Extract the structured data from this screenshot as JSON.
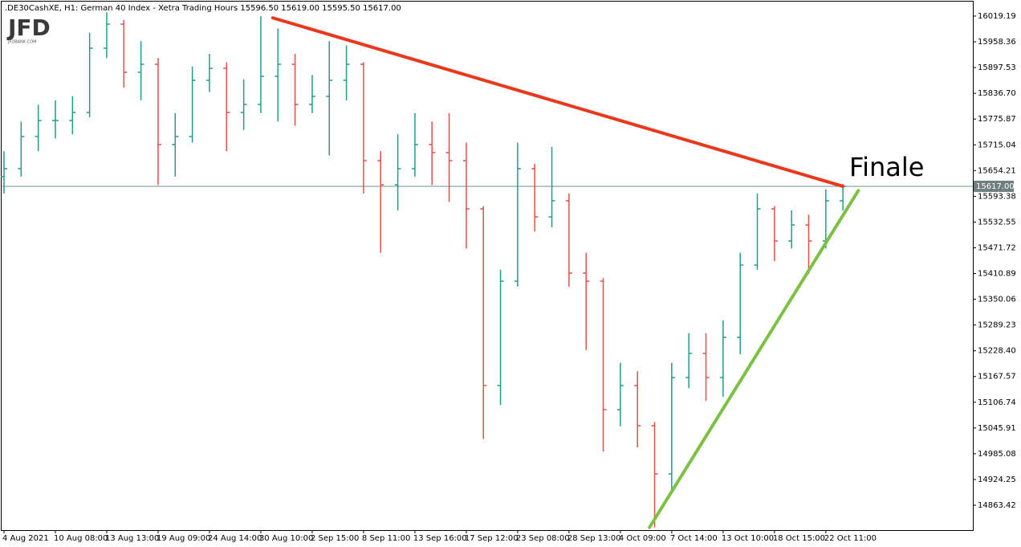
{
  "chart_data": {
    "type": "ohlc",
    "title": ".DE30CashXE, H1:  German 40 Index - Xetra Trading Hours  15596.50 15619.00 15595.50 15617.00",
    "logo": "JFD",
    "logo_subtitle": "JFDBANK.COM",
    "annotation": "Finale",
    "up_color": "#1f9e8a",
    "down_color": "#e0504a",
    "categories": [
      "4 Aug 2021",
      null,
      null,
      "10 Aug 08:00",
      null,
      null,
      "13 Aug 13:00",
      null,
      null,
      "19 Aug 09:00",
      null,
      null,
      "24 Aug 14:00",
      null,
      null,
      "30 Aug 10:00",
      null,
      null,
      "2 Sep 15:00",
      null,
      null,
      "8 Sep 11:00",
      null,
      null,
      "13 Sep 16:00",
      null,
      null,
      "17 Sep 12:00",
      null,
      null,
      "23 Sep 08:00",
      null,
      null,
      "28 Sep 13:00",
      null,
      null,
      "4 Oct 09:00",
      null,
      null,
      "7 Oct 14:00",
      null,
      null,
      "13 Oct 10:00",
      null,
      null,
      "18 Oct 15:00",
      null,
      null,
      "22 Oct 11:00",
      null
    ],
    "open": [
      15640,
      15658.6,
      15734.5,
      15772.5,
      15772.5,
      15791.5,
      15943.3,
      16000.2,
      15886.4,
      15905.3,
      15715.5,
      15734.5,
      15867.4,
      15895.8,
      15791.5,
      15810.4,
      15876.9,
      15905.3,
      15810.4,
      15829.4,
      15867.4,
      15905.3,
      15677.6,
      15620.6,
      15658.6,
      15715.5,
      15696.6,
      15677.6,
      15563.7,
      15146.2,
      15392.9,
      15658.6,
      15544.7,
      15582.7,
      15411.9,
      15392.9,
      15089.3,
      15146.2,
      15051.3,
      14937.4,
      15165.2,
      15222.1,
      15165.2,
      15260.1,
      15430.9,
      15563.7,
      15487.8,
      15525.7,
      15487.8,
      15582.7
    ],
    "high": [
      15700,
      15770,
      15810,
      15820,
      15830,
      15980,
      16028,
      16010,
      15960,
      15920,
      15790,
      15900,
      15930,
      15910,
      15870,
      16019,
      15990,
      15930,
      15880,
      15960,
      15950,
      15910,
      15700,
      15740,
      15790,
      15770,
      15790,
      15720,
      15570,
      15420,
      15720,
      15670,
      15710,
      15600,
      15460,
      15400,
      15200,
      15180,
      15060,
      15200,
      15270,
      15270,
      15300,
      15460,
      15600,
      15570,
      15560,
      15550,
      15610,
      15622
    ],
    "low": [
      15600,
      15640,
      15700,
      15730,
      15740,
      15780,
      15920,
      15850,
      15820,
      15620,
      15640,
      15720,
      15840,
      15700,
      15750,
      15790,
      15770,
      15760,
      15790,
      15690,
      15820,
      15600,
      15460,
      15560,
      15640,
      15620,
      15580,
      15470,
      15020,
      15100,
      15380,
      15510,
      15520,
      15380,
      15230,
      14990,
      15050,
      15000,
      14811,
      14900,
      15140,
      15110,
      15120,
      15220,
      15420,
      15440,
      15470,
      15410,
      15470,
      15560
    ],
    "close": [
      15658.6,
      15734.5,
      15772.5,
      15772.5,
      15791.5,
      15943.3,
      16000.2,
      15886.4,
      15905.3,
      15715.5,
      15734.5,
      15867.4,
      15895.8,
      15791.5,
      15810.4,
      15876.9,
      15905.3,
      15810.4,
      15829.4,
      15867.4,
      15905.3,
      15677.6,
      15620.6,
      15658.6,
      15715.5,
      15696.6,
      15677.6,
      15563.7,
      15146.2,
      15392.9,
      15658.6,
      15544.7,
      15582.7,
      15411.9,
      15392.9,
      15089.3,
      15146.2,
      15051.3,
      14937.4,
      15165.2,
      15222.1,
      15165.2,
      15260.1,
      15430.9,
      15563.7,
      15487.8,
      15525.7,
      15487.8,
      15582.7,
      15617.0
    ],
    "current_price": {
      "value": 15617,
      "label": "15617.00"
    },
    "trendlines": [
      {
        "color": "#e8391c",
        "from": [
          15.7,
          16015
        ],
        "to": [
          49,
          15617
        ]
      },
      {
        "color": "#7dc142",
        "from": [
          37.7,
          14811
        ],
        "to": [
          49.9,
          15607
        ]
      }
    ],
    "ylim": [
      14804.6,
      16053.4
    ],
    "yticks": [
      16019.19,
      15958.36,
      15897.53,
      {
        "value": 15836.7,
        "label": "15836.70"
      },
      15775.87,
      15715.04,
      15654.21,
      15593.38,
      15532.55,
      15471.72,
      15410.89,
      15350.06,
      15289.23,
      {
        "value": 15228.4,
        "label": "15228.40"
      },
      15167.57,
      15106.74,
      15045.91,
      14985.08,
      14924.25,
      14863.42
    ]
  }
}
